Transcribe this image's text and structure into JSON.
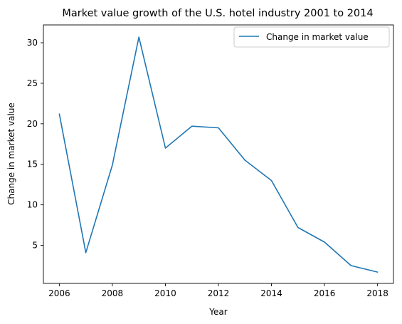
{
  "chart_data": {
    "type": "line",
    "title": "Market value growth of the U.S. hotel industry 2001 to 2014",
    "xlabel": "Year",
    "ylabel": "Change in market value",
    "xlim": [
      2005.4,
      2018.6
    ],
    "ylim": [
      0.3,
      32.2
    ],
    "xticks": [
      2006,
      2008,
      2010,
      2012,
      2014,
      2016,
      2018
    ],
    "yticks": [
      5,
      10,
      15,
      20,
      25,
      30
    ],
    "grid": false,
    "legend_position": "upper right",
    "series": [
      {
        "name": "Change in market value",
        "color": "#1f77b4",
        "x": [
          2006,
          2007,
          2008,
          2009,
          2010,
          2011,
          2012,
          2013,
          2014,
          2015,
          2016,
          2017,
          2018
        ],
        "y": [
          21.2,
          4.1,
          14.9,
          30.7,
          17.0,
          19.7,
          19.5,
          15.5,
          13.0,
          7.2,
          5.4,
          2.5,
          1.7
        ]
      }
    ]
  }
}
